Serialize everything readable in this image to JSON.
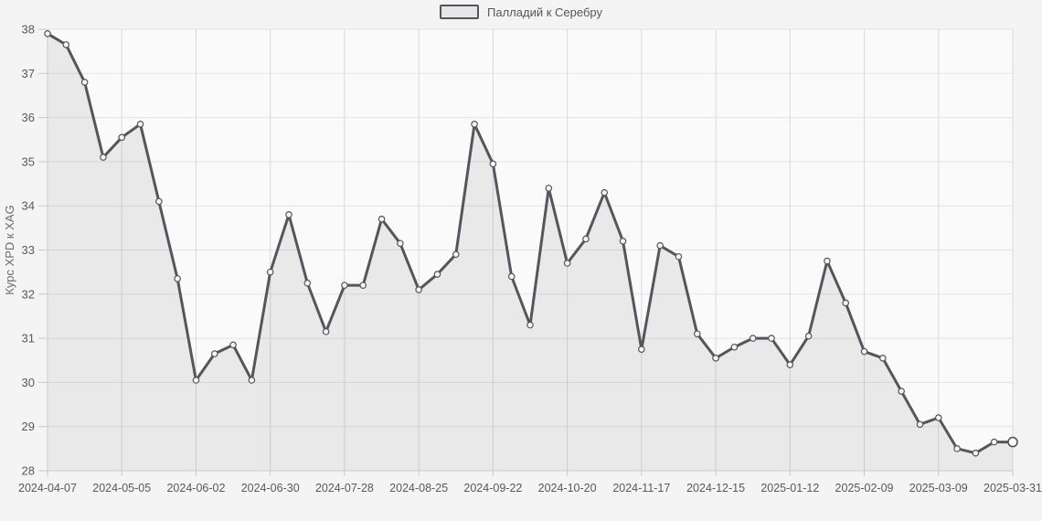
{
  "legend": {
    "label": "Палладий к Серебру"
  },
  "chart_data": {
    "type": "area",
    "title": "",
    "xlabel": "",
    "ylabel": "Курс XPD к XAG",
    "series_name": "Палладий к Серебру",
    "legend_position": "top-center",
    "grid": true,
    "ylim": [
      28,
      38
    ],
    "y_ticks": [
      28,
      29,
      30,
      31,
      32,
      33,
      34,
      35,
      36,
      37,
      38
    ],
    "x_tick_every": 4,
    "x_tick_labels": [
      "2024-04-07",
      "2024-05-05",
      "2024-06-02",
      "2024-06-30",
      "2024-07-28",
      "2024-08-25",
      "2024-09-22",
      "2024-10-20",
      "2024-11-17",
      "2024-12-15",
      "2025-01-12",
      "2025-02-09",
      "2025-03-09",
      "2025-03-31"
    ],
    "categories": [
      "2024-04-07",
      "2024-04-14",
      "2024-04-21",
      "2024-04-28",
      "2024-05-05",
      "2024-05-12",
      "2024-05-19",
      "2024-05-26",
      "2024-06-02",
      "2024-06-09",
      "2024-06-16",
      "2024-06-23",
      "2024-06-30",
      "2024-07-07",
      "2024-07-14",
      "2024-07-21",
      "2024-07-28",
      "2024-08-04",
      "2024-08-11",
      "2024-08-18",
      "2024-08-25",
      "2024-09-01",
      "2024-09-08",
      "2024-09-15",
      "2024-09-22",
      "2024-09-29",
      "2024-10-06",
      "2024-10-13",
      "2024-10-20",
      "2024-10-27",
      "2024-11-03",
      "2024-11-10",
      "2024-11-17",
      "2024-11-24",
      "2024-12-01",
      "2024-12-08",
      "2024-12-15",
      "2024-12-22",
      "2024-12-29",
      "2025-01-05",
      "2025-01-12",
      "2025-01-19",
      "2025-01-26",
      "2025-02-02",
      "2025-02-09",
      "2025-02-16",
      "2025-02-23",
      "2025-03-02",
      "2025-03-09",
      "2025-03-16",
      "2025-03-23",
      "2025-03-30",
      "2025-03-31"
    ],
    "values": [
      37.9,
      37.65,
      36.8,
      35.1,
      35.55,
      35.85,
      34.1,
      32.35,
      30.05,
      30.65,
      30.85,
      30.05,
      32.5,
      33.8,
      32.25,
      31.15,
      32.2,
      32.2,
      33.7,
      33.15,
      32.1,
      32.45,
      32.9,
      35.85,
      34.95,
      32.4,
      31.3,
      34.4,
      32.7,
      33.25,
      34.3,
      33.2,
      30.75,
      33.1,
      32.85,
      31.1,
      30.55,
      30.8,
      31.0,
      31.0,
      30.4,
      31.05,
      32.75,
      31.8,
      30.7,
      30.55,
      29.8,
      29.05,
      29.2,
      28.5,
      28.4,
      28.65,
      28.65
    ],
    "colors": {
      "page_bg": "#f4f4f5",
      "plot_bg": "#fafafa",
      "grid_h": "#e4e4e5",
      "grid_v": "#d9d9db",
      "axis": "#c9c9cb",
      "line": "#55565b",
      "area": "rgba(85,86,91,0.10)",
      "marker_fill": "#f4f4f5",
      "tick_text": "#59595c",
      "axis_title_text": "#6b6b6e"
    }
  }
}
